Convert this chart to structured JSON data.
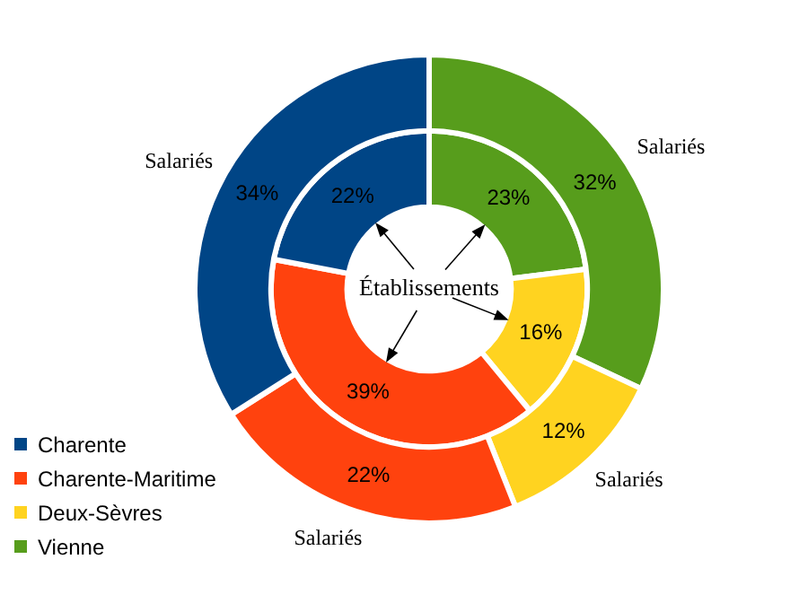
{
  "chart_data": {
    "type": "donut",
    "categories": [
      "Charente",
      "Charente-Maritime",
      "Deux-Sèvres",
      "Vienne"
    ],
    "colors": [
      "#004586",
      "#ff420e",
      "#ffd320",
      "#579d1c"
    ],
    "series": [
      {
        "name": "Salariés",
        "values": [
          34,
          22,
          12,
          32
        ],
        "value_labels": [
          "34%",
          "22%",
          "12%",
          "32%"
        ]
      },
      {
        "name": "Établissements",
        "values": [
          22,
          39,
          16,
          23
        ],
        "value_labels": [
          "22%",
          "39%",
          "16%",
          "23%"
        ]
      }
    ],
    "legend": "bottom left"
  }
}
